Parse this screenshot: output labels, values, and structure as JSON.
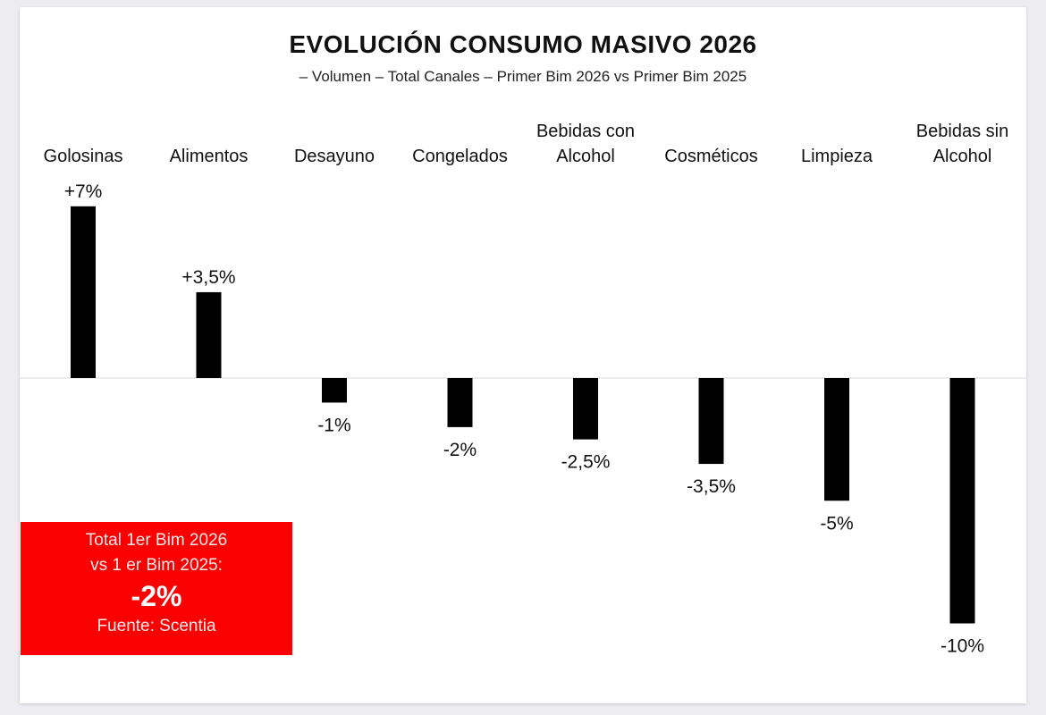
{
  "chart_data": {
    "type": "bar",
    "title": "EVOLUCIÓN CONSUMO MASIVO 2026",
    "subtitle": "– Volumen – Total Canales – Primer Bim 2026 vs Primer Bim 2025",
    "categories": [
      [
        "Golosinas"
      ],
      [
        "Alimentos"
      ],
      [
        "Desayuno"
      ],
      [
        "Congelados"
      ],
      [
        "Bebidas con",
        "Alcohol"
      ],
      [
        "Cosméticos"
      ],
      [
        "Limpieza"
      ],
      [
        "Bebidas sin",
        "Alcohol"
      ]
    ],
    "values": [
      7,
      3.5,
      -1,
      -2,
      -2.5,
      -3.5,
      -5,
      -10
    ],
    "data_labels": [
      "+7%",
      "+3,5%",
      "-1%",
      "-2%",
      "-2,5%",
      "-3,5%",
      "-5%",
      "-10%"
    ],
    "unit": "%",
    "bar_color": "#000000",
    "grid": false,
    "legend": "none"
  },
  "summary_box": {
    "line1": "Total 1er Bim 2026",
    "line2": "vs 1 er Bim 2025:",
    "value": "-2%",
    "source": "Fuente: Scentia",
    "color": "#fb0000"
  }
}
